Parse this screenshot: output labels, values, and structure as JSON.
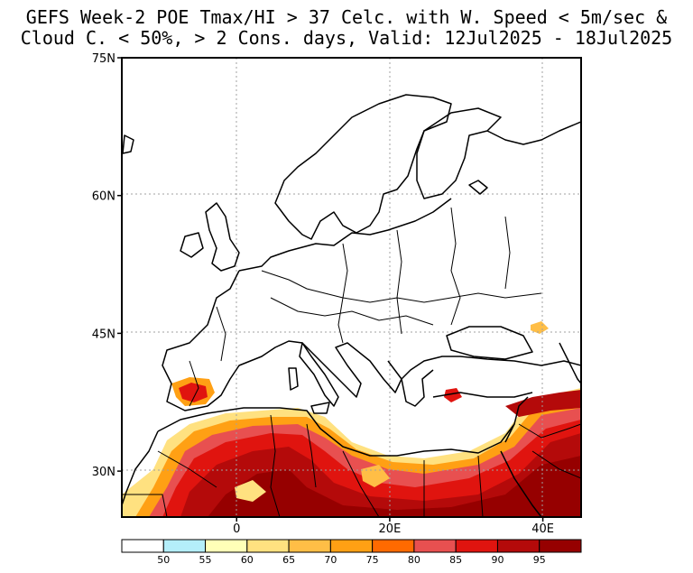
{
  "title": {
    "line1": "GEFS Week-2 POE Tmax/HI > 37 Celc. with W. Speed < 5m/sec &",
    "line2": "Cloud C. < 50%, > 2 Cons. days, Valid: 12Jul2025 - 18Jul2025"
  },
  "lat_labels": [
    {
      "lat": 75,
      "label": "75N"
    },
    {
      "lat": 60,
      "label": "60N"
    },
    {
      "lat": 45,
      "label": "45N"
    },
    {
      "lat": 30,
      "label": "30N"
    }
  ],
  "lon_labels": [
    {
      "lon": 0,
      "label": "0"
    },
    {
      "lon": 20,
      "label": "20E"
    },
    {
      "lon": 40,
      "label": "40E"
    }
  ],
  "map_extent": {
    "lon_min": -15,
    "lon_max": 45,
    "lat_min": 25,
    "lat_max": 75
  },
  "colorbar": {
    "bins": [
      {
        "color": "#ffffff",
        "label": "50"
      },
      {
        "color": "#b4eefa",
        "label": "55"
      },
      {
        "color": "#ffffb8",
        "label": "60"
      },
      {
        "color": "#ffe180",
        "label": "65"
      },
      {
        "color": "#ffbe46",
        "label": "70"
      },
      {
        "color": "#ffa014",
        "label": "75"
      },
      {
        "color": "#ff6a00",
        "label": "80"
      },
      {
        "color": "#e85050",
        "label": "85"
      },
      {
        "color": "#e0140f",
        "label": "90"
      },
      {
        "color": "#b40a0a",
        "label": "95"
      },
      {
        "color": "#960000",
        "label": ""
      }
    ]
  },
  "colors": {
    "land_line": "#000000",
    "grid": "#a0a0a0"
  }
}
